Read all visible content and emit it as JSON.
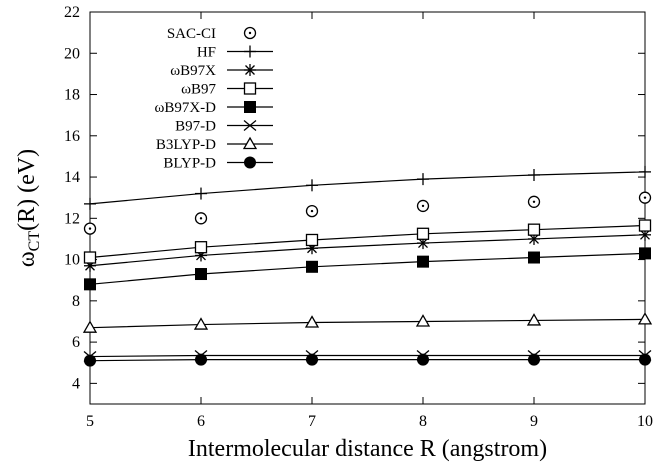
{
  "chart_data": {
    "type": "line",
    "xlabel": "Intermolecular distance R (angstrom)",
    "ylabel_main": "ω",
    "ylabel_sub": "CT",
    "ylabel_rest": "(R) (eV)",
    "xlim": [
      5,
      10
    ],
    "ylim": [
      3,
      22
    ],
    "x_ticks": [
      5,
      6,
      7,
      8,
      9,
      10
    ],
    "y_ticks": [
      4,
      6,
      8,
      10,
      12,
      14,
      16,
      18,
      20,
      22
    ],
    "x": [
      5,
      6,
      7,
      8,
      9,
      10
    ],
    "legend_position": "top-left",
    "grid": false,
    "series": [
      {
        "name": "SAC-CI",
        "marker": "circle-dot",
        "line": false,
        "values": [
          11.5,
          12.0,
          12.35,
          12.6,
          12.8,
          13.0
        ]
      },
      {
        "name": "HF",
        "marker": "plus",
        "line": true,
        "values": [
          12.7,
          13.2,
          13.6,
          13.9,
          14.1,
          14.25
        ]
      },
      {
        "name": "ωB97X",
        "marker": "asterisk",
        "line": true,
        "values": [
          9.7,
          10.2,
          10.55,
          10.8,
          11.0,
          11.2
        ]
      },
      {
        "name": "ωB97",
        "marker": "open-square",
        "line": true,
        "values": [
          10.1,
          10.6,
          10.95,
          11.25,
          11.45,
          11.65
        ]
      },
      {
        "name": "ωB97X-D",
        "marker": "filled-square",
        "line": true,
        "values": [
          8.8,
          9.3,
          9.65,
          9.9,
          10.1,
          10.3
        ]
      },
      {
        "name": "B97-D",
        "marker": "x",
        "line": true,
        "values": [
          5.3,
          5.35,
          5.35,
          5.35,
          5.35,
          5.35
        ]
      },
      {
        "name": "B3LYP-D",
        "marker": "open-triangle",
        "line": true,
        "values": [
          6.7,
          6.85,
          6.95,
          7.0,
          7.05,
          7.1
        ]
      },
      {
        "name": "BLYP-D",
        "marker": "filled-circle",
        "line": true,
        "values": [
          5.1,
          5.15,
          5.15,
          5.15,
          5.15,
          5.15
        ]
      }
    ]
  }
}
